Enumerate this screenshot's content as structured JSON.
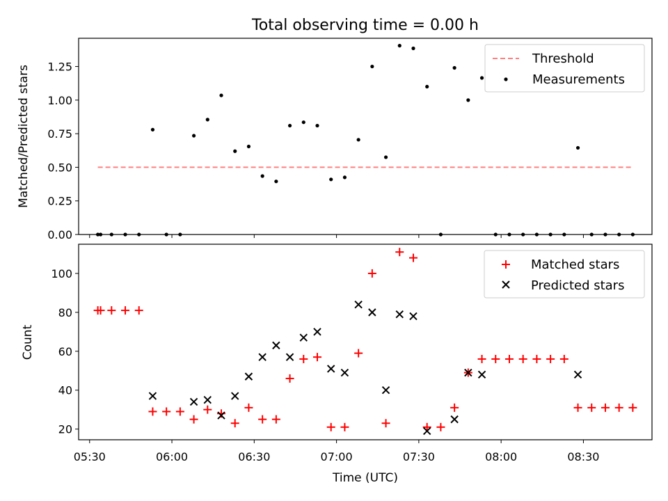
{
  "chart_data": [
    {
      "type": "scatter",
      "title": "Total observing time = 0.00 h",
      "xlabel": "",
      "ylabel": "Matched/Predicted stars",
      "xlim": [
        "05:26",
        "08:55"
      ],
      "ylim": [
        0,
        1.46
      ],
      "yticks": [
        0.0,
        0.25,
        0.5,
        0.75,
        1.0,
        1.25
      ],
      "ytick_labels": [
        "0.00",
        "0.25",
        "0.50",
        "0.75",
        "1.00",
        "1.25"
      ],
      "legend_position": "upper right",
      "legend": [
        "Threshold",
        "Measurements"
      ],
      "threshold": {
        "name": "Threshold",
        "value": 0.5,
        "x_start": "05:33",
        "x_end": "08:48",
        "color": "#ff7f7f",
        "style": "dashed"
      },
      "series": [
        {
          "name": "Measurements",
          "marker": "dot",
          "color": "#000000",
          "x": [
            "05:33",
            "05:34",
            "05:38",
            "05:43",
            "05:48",
            "05:53",
            "05:58",
            "06:03",
            "06:08",
            "06:13",
            "06:18",
            "06:23",
            "06:28",
            "06:33",
            "06:38",
            "06:43",
            "06:48",
            "06:53",
            "06:58",
            "07:03",
            "07:08",
            "07:13",
            "07:18",
            "07:23",
            "07:28",
            "07:33",
            "07:38",
            "07:43",
            "07:48",
            "07:53",
            "07:58",
            "08:03",
            "08:08",
            "08:13",
            "08:18",
            "08:23",
            "08:28",
            "08:33",
            "08:38",
            "08:43",
            "08:48"
          ],
          "y": [
            0.0,
            0.0,
            0.0,
            0.0,
            0.0,
            0.78,
            0.0,
            0.0,
            0.735,
            0.855,
            1.035,
            0.62,
            0.655,
            0.435,
            0.395,
            0.81,
            0.835,
            0.81,
            0.41,
            0.425,
            0.705,
            1.25,
            0.575,
            1.405,
            1.385,
            1.1,
            0.0,
            1.24,
            1.0,
            1.165,
            0.0,
            0.0,
            0.0,
            0.0,
            0.0,
            0.0,
            0.645,
            0.0,
            0.0,
            0.0,
            0.0
          ]
        }
      ]
    },
    {
      "type": "scatter",
      "title": "",
      "xlabel": "Time (UTC)",
      "ylabel": "Count",
      "xlim": [
        "05:26",
        "08:55"
      ],
      "ylim": [
        14.5,
        115
      ],
      "yticks": [
        20,
        40,
        60,
        80,
        100
      ],
      "xticks": [
        "05:30",
        "06:00",
        "06:30",
        "07:00",
        "07:30",
        "08:00",
        "08:30"
      ],
      "legend_position": "upper right",
      "legend": [
        "Matched stars",
        "Predicted stars"
      ],
      "series": [
        {
          "name": "Matched stars",
          "marker": "plus",
          "color": "#ff0000",
          "x": [
            "05:33",
            "05:34",
            "05:38",
            "05:43",
            "05:48",
            "05:53",
            "05:58",
            "06:03",
            "06:08",
            "06:13",
            "06:18",
            "06:23",
            "06:28",
            "06:33",
            "06:38",
            "06:43",
            "06:48",
            "06:53",
            "06:58",
            "07:03",
            "07:08",
            "07:13",
            "07:18",
            "07:23",
            "07:28",
            "07:33",
            "07:38",
            "07:43",
            "07:48",
            "07:53",
            "07:58",
            "08:03",
            "08:08",
            "08:13",
            "08:18",
            "08:23",
            "08:28",
            "08:33",
            "08:38",
            "08:43",
            "08:48"
          ],
          "y": [
            81,
            81,
            81,
            81,
            81,
            29,
            29,
            29,
            25,
            30,
            28,
            23,
            31,
            25,
            25,
            46,
            56,
            57,
            21,
            21,
            59,
            100,
            23,
            111,
            108,
            21,
            21,
            31,
            49,
            56,
            56,
            56,
            56,
            56,
            56,
            56,
            31,
            31,
            31,
            31,
            31
          ]
        },
        {
          "name": "Predicted stars",
          "marker": "x",
          "color": "#000000",
          "x": [
            "05:53",
            "06:08",
            "06:13",
            "06:18",
            "06:23",
            "06:28",
            "06:33",
            "06:38",
            "06:43",
            "06:48",
            "06:53",
            "06:58",
            "07:03",
            "07:08",
            "07:13",
            "07:18",
            "07:23",
            "07:28",
            "07:33",
            "07:43",
            "07:48",
            "07:53",
            "08:28"
          ],
          "y": [
            37,
            34,
            35,
            27,
            37,
            47,
            57,
            63,
            57,
            67,
            70,
            51,
            49,
            84,
            80,
            40,
            79,
            78,
            19,
            25,
            49,
            48,
            48
          ]
        }
      ]
    }
  ]
}
